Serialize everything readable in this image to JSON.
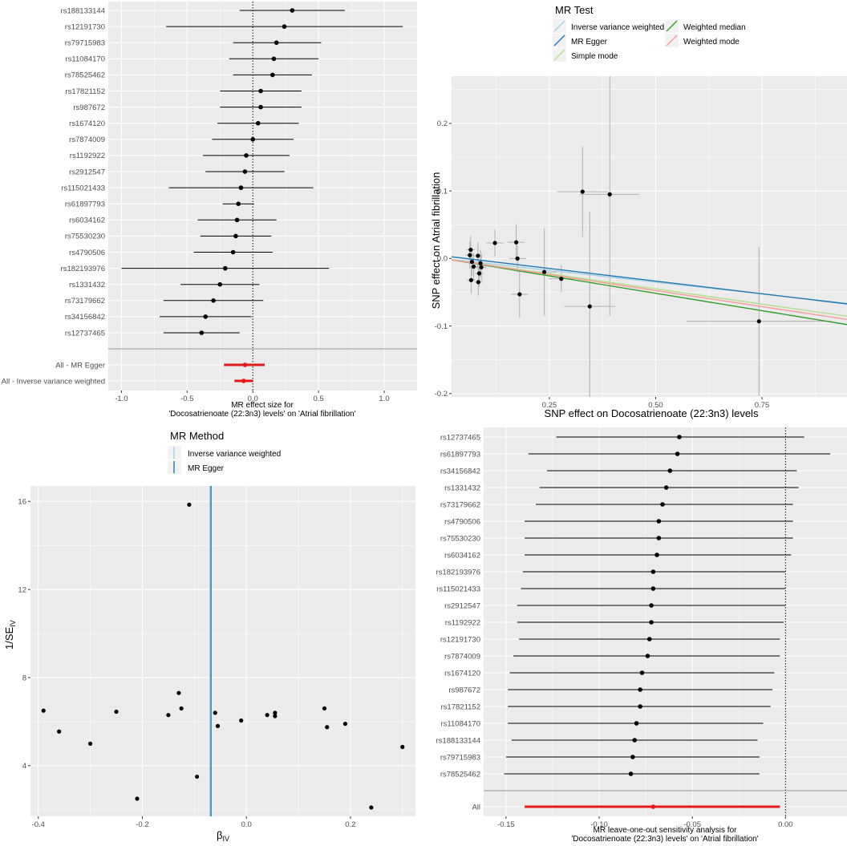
{
  "colors": {
    "panel": "#ebebeb",
    "grid": "#ffffff",
    "point": "#000000",
    "line": "#000000",
    "summary": "#e31a1c",
    "errbar": "#b0b0b0",
    "axis_text": "#4d4d4d"
  },
  "chart_data": [
    {
      "type": "forest",
      "panel": "top-left",
      "xlabel_line1": "MR effect size for",
      "xlabel_line2": "'Docosatrienoate (22:3n3) levels' on 'Atrial fibrillation'",
      "xlim": [
        -1.1,
        1.25
      ],
      "xticks": [
        -1.0,
        -0.5,
        0.0,
        0.5,
        1.0
      ],
      "xtick_labels": [
        "-1.0",
        "-0.5",
        "0.0",
        "0.5",
        "1.0"
      ],
      "rows": [
        {
          "label": "rs188133144",
          "b": 0.3,
          "lo": -0.1,
          "hi": 0.7
        },
        {
          "label": "rs12191730",
          "b": 0.24,
          "lo": -0.66,
          "hi": 1.14
        },
        {
          "label": "rs79715983",
          "b": 0.18,
          "lo": -0.15,
          "hi": 0.52
        },
        {
          "label": "rs11084170",
          "b": 0.16,
          "lo": -0.18,
          "hi": 0.5
        },
        {
          "label": "rs78525462",
          "b": 0.15,
          "lo": -0.15,
          "hi": 0.45
        },
        {
          "label": "rs17821152",
          "b": 0.06,
          "lo": -0.25,
          "hi": 0.37
        },
        {
          "label": "rs987672",
          "b": 0.06,
          "lo": -0.25,
          "hi": 0.37
        },
        {
          "label": "rs1674120",
          "b": 0.04,
          "lo": -0.27,
          "hi": 0.35
        },
        {
          "label": "rs7874009",
          "b": 0.0,
          "lo": -0.31,
          "hi": 0.31
        },
        {
          "label": "rs1192922",
          "b": -0.05,
          "lo": -0.38,
          "hi": 0.28
        },
        {
          "label": "rs2912547",
          "b": -0.06,
          "lo": -0.36,
          "hi": 0.24
        },
        {
          "label": "rs115021433",
          "b": -0.09,
          "lo": -0.64,
          "hi": 0.46
        },
        {
          "label": "rs61897793",
          "b": -0.11,
          "lo": -0.23,
          "hi": 0.01
        },
        {
          "label": "rs6034162",
          "b": -0.12,
          "lo": -0.42,
          "hi": 0.18
        },
        {
          "label": "rs75530230",
          "b": -0.13,
          "lo": -0.4,
          "hi": 0.14
        },
        {
          "label": "rs4790506",
          "b": -0.15,
          "lo": -0.45,
          "hi": 0.15
        },
        {
          "label": "rs182193976",
          "b": -0.21,
          "lo": -1.0,
          "hi": 0.58
        },
        {
          "label": "rs1331432",
          "b": -0.25,
          "lo": -0.55,
          "hi": 0.05
        },
        {
          "label": "rs73179662",
          "b": -0.3,
          "lo": -0.68,
          "hi": 0.08
        },
        {
          "label": "rs34156842",
          "b": -0.36,
          "lo": -0.71,
          "hi": -0.01
        },
        {
          "label": "rs12737465",
          "b": -0.39,
          "lo": -0.68,
          "hi": -0.1
        }
      ],
      "summary": [
        {
          "label": "All - MR Egger",
          "b": -0.06,
          "lo": -0.22,
          "hi": 0.09
        },
        {
          "label": "All - Inverse variance weighted",
          "b": -0.07,
          "lo": -0.14,
          "hi": 0.0
        }
      ]
    },
    {
      "type": "scatter",
      "panel": "top-right",
      "xlabel": "SNP effect on Docosatrienoate (22:3n3) levels",
      "ylabel": "SNP effect on Atrial fibrillation",
      "xlim": [
        0.02,
        0.95
      ],
      "ylim": [
        -0.205,
        0.27
      ],
      "xticks": [
        0.25,
        0.5,
        0.75
      ],
      "xtick_labels": [
        "0.25",
        "0.50",
        "0.75"
      ],
      "yticks": [
        -0.2,
        -0.1,
        0.0,
        0.1,
        0.2
      ],
      "ytick_labels": [
        "-0.2",
        "-0.1",
        "0.0",
        "0.1",
        "0.2"
      ],
      "legend_title": "MR Test",
      "legend": [
        {
          "name": "Inverse variance weighted",
          "color": "#a6cee3"
        },
        {
          "name": "MR Egger",
          "color": "#1f78b4"
        },
        {
          "name": "Simple mode",
          "color": "#b2df8a"
        },
        {
          "name": "Weighted median",
          "color": "#33a02c"
        },
        {
          "name": "Weighted mode",
          "color": "#fb9a99"
        }
      ],
      "lines": [
        {
          "name": "Inverse variance weighted",
          "intercept": 0.0,
          "slope": -0.07
        },
        {
          "name": "MR Egger",
          "intercept": 0.004,
          "slope": -0.075
        },
        {
          "name": "Simple mode",
          "intercept": 0.0,
          "slope": -0.09
        },
        {
          "name": "Weighted median",
          "intercept": 0.0,
          "slope": -0.103
        },
        {
          "name": "Weighted mode",
          "intercept": 0.0,
          "slope": -0.095
        }
      ],
      "points": [
        {
          "x": 0.065,
          "y": 0.013,
          "xse": 0.01,
          "yse": 0.02
        },
        {
          "x": 0.063,
          "y": 0.005,
          "xse": 0.01,
          "yse": 0.02
        },
        {
          "x": 0.068,
          "y": -0.005,
          "xse": 0.01,
          "yse": 0.02
        },
        {
          "x": 0.072,
          "y": -0.012,
          "xse": 0.01,
          "yse": 0.02
        },
        {
          "x": 0.066,
          "y": -0.032,
          "xse": 0.01,
          "yse": 0.02
        },
        {
          "x": 0.082,
          "y": 0.004,
          "xse": 0.01,
          "yse": 0.02
        },
        {
          "x": 0.085,
          "y": -0.022,
          "xse": 0.01,
          "yse": 0.02
        },
        {
          "x": 0.083,
          "y": -0.035,
          "xse": 0.01,
          "yse": 0.02
        },
        {
          "x": 0.088,
          "y": -0.007,
          "xse": 0.012,
          "yse": 0.02
        },
        {
          "x": 0.09,
          "y": -0.013,
          "xse": 0.012,
          "yse": 0.02
        },
        {
          "x": 0.122,
          "y": 0.023,
          "xse": 0.02,
          "yse": 0.02
        },
        {
          "x": 0.172,
          "y": 0.024,
          "xse": 0.02,
          "yse": 0.027
        },
        {
          "x": 0.175,
          "y": 0.0,
          "xse": 0.02,
          "yse": 0.02
        },
        {
          "x": 0.18,
          "y": -0.053,
          "xse": 0.02,
          "yse": 0.035
        },
        {
          "x": 0.238,
          "y": -0.02,
          "xse": 0.03,
          "yse": 0.065
        },
        {
          "x": 0.278,
          "y": -0.03,
          "xse": 0.03,
          "yse": 0.02
        },
        {
          "x": 0.328,
          "y": 0.099,
          "xse": 0.06,
          "yse": 0.067
        },
        {
          "x": 0.345,
          "y": -0.071,
          "xse": 0.06,
          "yse": 0.14
        },
        {
          "x": 0.392,
          "y": 0.095,
          "xse": 0.07,
          "yse": 0.18
        },
        {
          "x": 0.743,
          "y": -0.093,
          "xse": 0.17,
          "yse": 0.11
        }
      ]
    },
    {
      "type": "funnel",
      "panel": "bottom-left",
      "xlabel": "β",
      "xlabel_sub": "IV",
      "ylabel": "1/SE",
      "ylabel_sub": "IV",
      "xlim": [
        -0.415,
        0.325
      ],
      "ylim": [
        1.7,
        16.7
      ],
      "xticks": [
        -0.4,
        -0.2,
        0.0,
        0.2
      ],
      "xtick_labels": [
        "-0.4",
        "-0.2",
        "0.0",
        "0.2"
      ],
      "yticks": [
        4,
        8,
        12,
        16
      ],
      "ytick_labels": [
        "4",
        "8",
        "12",
        "16"
      ],
      "legend_title": "MR Method",
      "legend": [
        {
          "name": "Inverse variance weighted",
          "color": "#a6cee3"
        },
        {
          "name": "MR Egger",
          "color": "#1f78b4"
        }
      ],
      "vlines": [
        {
          "name": "Inverse variance weighted",
          "x": -0.07
        },
        {
          "name": "MR Egger",
          "x": -0.068
        }
      ],
      "points": [
        {
          "x": -0.39,
          "y": 6.5
        },
        {
          "x": -0.36,
          "y": 5.55
        },
        {
          "x": -0.3,
          "y": 5.0
        },
        {
          "x": -0.25,
          "y": 6.45
        },
        {
          "x": -0.21,
          "y": 2.5
        },
        {
          "x": -0.15,
          "y": 6.3
        },
        {
          "x": -0.13,
          "y": 7.3
        },
        {
          "x": -0.125,
          "y": 6.6
        },
        {
          "x": -0.11,
          "y": 15.85
        },
        {
          "x": -0.095,
          "y": 3.5
        },
        {
          "x": -0.06,
          "y": 6.4
        },
        {
          "x": -0.055,
          "y": 5.8
        },
        {
          "x": -0.01,
          "y": 6.05
        },
        {
          "x": 0.04,
          "y": 6.3
        },
        {
          "x": 0.055,
          "y": 6.4
        },
        {
          "x": 0.055,
          "y": 6.25
        },
        {
          "x": 0.15,
          "y": 6.6
        },
        {
          "x": 0.155,
          "y": 5.75
        },
        {
          "x": 0.19,
          "y": 5.9
        },
        {
          "x": 0.24,
          "y": 2.1
        },
        {
          "x": 0.3,
          "y": 4.85
        }
      ]
    },
    {
      "type": "forest",
      "panel": "bottom-right",
      "xlabel_line1": "MR leave-one-out sensitivity analysis for",
      "xlabel_line2": "'Docosatrienoate (22:3n3) levels' on 'Atrial fibrillation'",
      "xlim": [
        -0.162,
        0.033
      ],
      "xticks": [
        -0.15,
        -0.1,
        -0.05,
        0.0
      ],
      "xtick_labels": [
        "-0.15",
        "-0.10",
        "-0.05",
        "0.00"
      ],
      "rows": [
        {
          "label": "rs12737465",
          "b": -0.057,
          "lo": -0.123,
          "hi": 0.01
        },
        {
          "label": "rs61897793",
          "b": -0.058,
          "lo": -0.138,
          "hi": 0.024
        },
        {
          "label": "rs34156842",
          "b": -0.062,
          "lo": -0.128,
          "hi": 0.006
        },
        {
          "label": "rs1331432",
          "b": -0.064,
          "lo": -0.132,
          "hi": 0.007
        },
        {
          "label": "rs73179662",
          "b": -0.066,
          "lo": -0.134,
          "hi": 0.004
        },
        {
          "label": "rs4790506",
          "b": -0.068,
          "lo": -0.14,
          "hi": 0.004
        },
        {
          "label": "rs75530230",
          "b": -0.068,
          "lo": -0.14,
          "hi": 0.004
        },
        {
          "label": "rs6034162",
          "b": -0.069,
          "lo": -0.14,
          "hi": 0.003
        },
        {
          "label": "rs182193976",
          "b": -0.071,
          "lo": -0.141,
          "hi": 0.0
        },
        {
          "label": "rs115021433",
          "b": -0.071,
          "lo": -0.142,
          "hi": 0.0
        },
        {
          "label": "rs2912547",
          "b": -0.072,
          "lo": -0.144,
          "hi": 0.0
        },
        {
          "label": "rs1192922",
          "b": -0.072,
          "lo": -0.144,
          "hi": -0.001
        },
        {
          "label": "rs12191730",
          "b": -0.073,
          "lo": -0.143,
          "hi": -0.003
        },
        {
          "label": "rs7874009",
          "b": -0.074,
          "lo": -0.146,
          "hi": -0.003
        },
        {
          "label": "rs1674120",
          "b": -0.077,
          "lo": -0.148,
          "hi": -0.006
        },
        {
          "label": "rs987672",
          "b": -0.078,
          "lo": -0.149,
          "hi": -0.007
        },
        {
          "label": "rs17821152",
          "b": -0.078,
          "lo": -0.149,
          "hi": -0.008
        },
        {
          "label": "rs11084170",
          "b": -0.08,
          "lo": -0.149,
          "hi": -0.012
        },
        {
          "label": "rs188133144",
          "b": -0.081,
          "lo": -0.147,
          "hi": -0.015
        },
        {
          "label": "rs79715983",
          "b": -0.082,
          "lo": -0.15,
          "hi": -0.014
        },
        {
          "label": "rs78525462",
          "b": -0.083,
          "lo": -0.151,
          "hi": -0.014
        }
      ],
      "summary": [
        {
          "label": "All",
          "b": -0.071,
          "lo": -0.14,
          "hi": -0.003
        }
      ]
    }
  ]
}
